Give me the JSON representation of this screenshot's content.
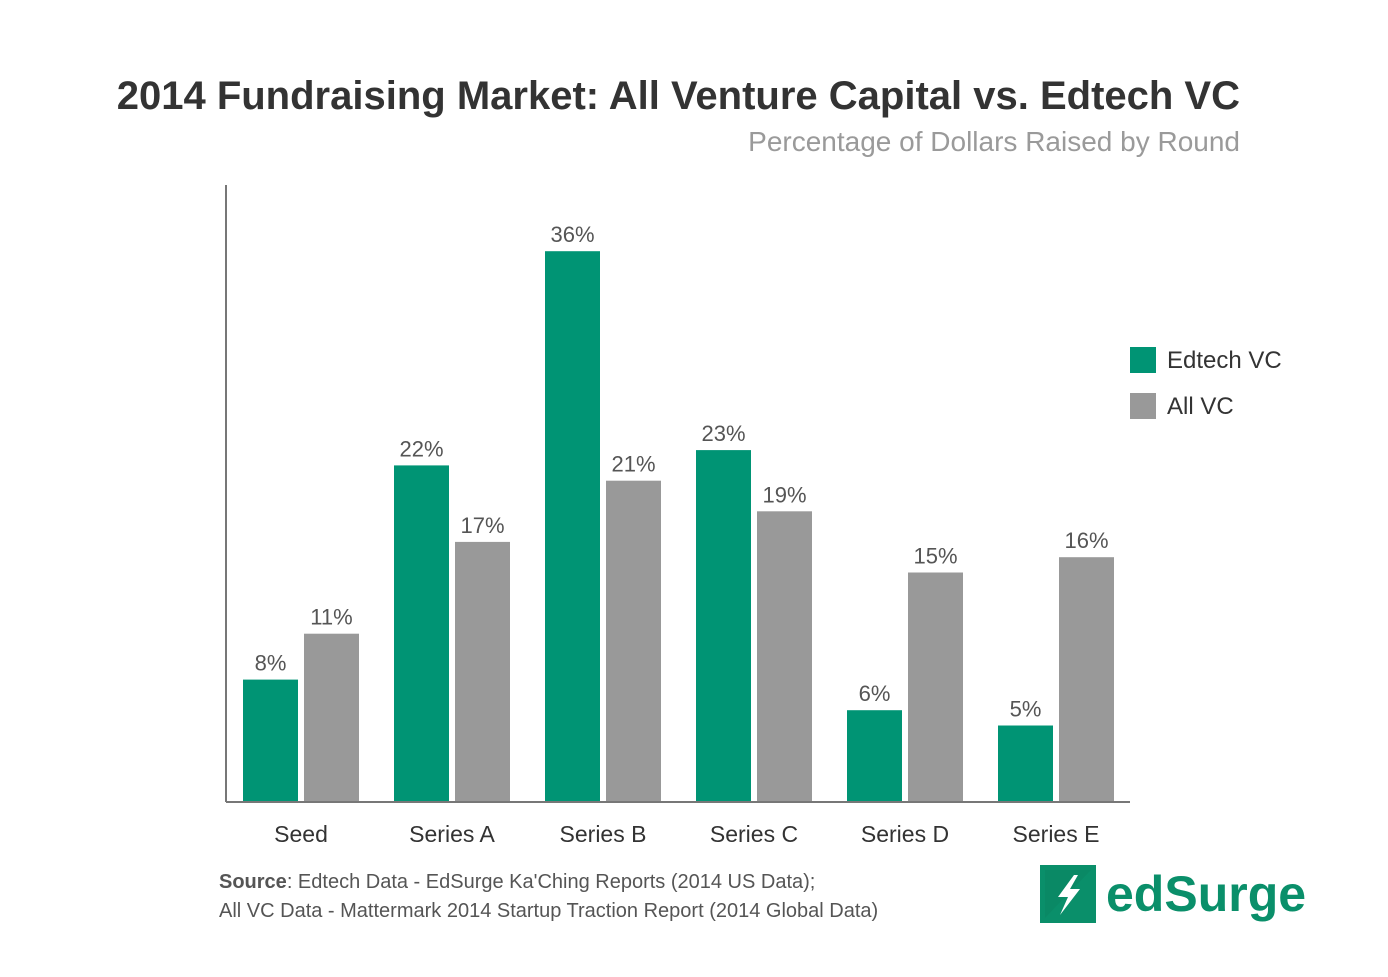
{
  "title": "2014 Fundraising Market: All Venture Capital vs. Edtech VC",
  "subtitle": "Percentage of Dollars Raised by Round",
  "colors": {
    "edtech": "#009474",
    "allvc": "#999999",
    "axis": "#777777",
    "label": "#555555",
    "category": "#333333"
  },
  "chart_data": {
    "type": "bar",
    "title": "2014 Fundraising Market: All Venture Capital vs. Edtech VC",
    "subtitle": "Percentage of Dollars Raised by Round",
    "categories": [
      "Seed",
      "Series A",
      "Series B",
      "Series C",
      "Series D",
      "Series E"
    ],
    "series": [
      {
        "name": "Edtech VC",
        "values": [
          8,
          22,
          36,
          23,
          6,
          5
        ],
        "labels": [
          "8%",
          "22%",
          "36%",
          "23%",
          "6%",
          "5%"
        ]
      },
      {
        "name": "All VC",
        "values": [
          11,
          17,
          21,
          19,
          15,
          16
        ],
        "labels": [
          "11%",
          "17%",
          "21%",
          "19%",
          "15%",
          "16%"
        ]
      }
    ],
    "xlabel": "",
    "ylabel": "",
    "ylim": [
      0,
      40
    ],
    "grid": false,
    "legend": "right"
  },
  "source": {
    "label": "Source",
    "line1": ": Edtech Data - EdSurge Ka'Ching Reports (2014 US Data);",
    "line2": "All VC Data - Mattermark 2014 Startup Traction Report (2014 Global Data)"
  },
  "logo": {
    "text": "edSurge",
    "icon": "lightning-bolt-icon"
  }
}
